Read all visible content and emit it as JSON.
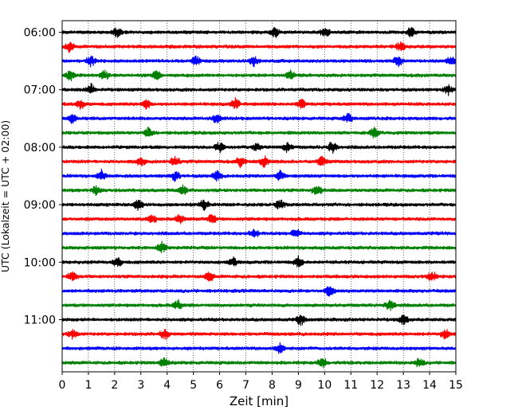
{
  "chart_data": {
    "type": "line",
    "title": "",
    "xlabel": "Zeit  [min]",
    "ylabel": "UTC (Lokalzeit = UTC + 02:00)",
    "xlim": [
      0,
      15
    ],
    "x_ticks": [
      "0",
      "1",
      "2",
      "3",
      "4",
      "5",
      "6",
      "7",
      "8",
      "9",
      "10",
      "11",
      "12",
      "13",
      "14",
      "15"
    ],
    "y_ticks": [
      "06:00",
      "07:00",
      "08:00",
      "09:00",
      "10:00",
      "11:00"
    ],
    "grid": "vertical-dotted",
    "legend": "none",
    "trace_interval_minutes": 15,
    "first_trace_time": "06:00",
    "colors": [
      "#000000",
      "#ff0000",
      "#0000ff",
      "#008000"
    ],
    "series": [
      {
        "time": "06:00",
        "color": "#000000",
        "events_min": [
          2.1,
          8.1,
          10.0,
          13.3
        ]
      },
      {
        "time": "06:15",
        "color": "#ff0000",
        "events_min": [
          0.3,
          12.9
        ]
      },
      {
        "time": "06:30",
        "color": "#0000ff",
        "events_min": [
          1.1,
          5.1,
          7.3,
          12.8,
          14.8
        ]
      },
      {
        "time": "06:45",
        "color": "#008000",
        "events_min": [
          0.3,
          1.6,
          3.6,
          8.7
        ]
      },
      {
        "time": "07:00",
        "color": "#000000",
        "events_min": [
          1.1,
          14.7
        ]
      },
      {
        "time": "07:15",
        "color": "#ff0000",
        "events_min": [
          0.7,
          3.2,
          6.6,
          9.1
        ]
      },
      {
        "time": "07:30",
        "color": "#0000ff",
        "events_min": [
          0.4,
          5.9,
          10.9
        ]
      },
      {
        "time": "07:45",
        "color": "#008000",
        "events_min": [
          3.3,
          11.9
        ]
      },
      {
        "time": "08:00",
        "color": "#000000",
        "events_min": [
          6.0,
          7.4,
          8.6,
          10.3
        ]
      },
      {
        "time": "08:15",
        "color": "#ff0000",
        "events_min": [
          3.0,
          4.3,
          6.8,
          7.7,
          9.9
        ]
      },
      {
        "time": "08:30",
        "color": "#0000ff",
        "events_min": [
          1.5,
          4.3,
          5.9,
          8.3
        ]
      },
      {
        "time": "08:45",
        "color": "#008000",
        "events_min": [
          1.3,
          4.6,
          9.7
        ]
      },
      {
        "time": "09:00",
        "color": "#000000",
        "events_min": [
          2.9,
          5.4,
          8.3
        ]
      },
      {
        "time": "09:15",
        "color": "#ff0000",
        "events_min": [
          3.4,
          4.5,
          5.7
        ]
      },
      {
        "time": "09:30",
        "color": "#0000ff",
        "events_min": [
          7.3,
          8.9
        ]
      },
      {
        "time": "09:45",
        "color": "#008000",
        "events_min": [
          3.8
        ]
      },
      {
        "time": "10:00",
        "color": "#000000",
        "events_min": [
          2.1,
          6.5,
          9.0
        ]
      },
      {
        "time": "10:15",
        "color": "#ff0000",
        "events_min": [
          0.4,
          5.6,
          14.1
        ]
      },
      {
        "time": "10:30",
        "color": "#0000ff",
        "events_min": [
          10.2
        ]
      },
      {
        "time": "10:45",
        "color": "#008000",
        "events_min": [
          4.4,
          12.5
        ]
      },
      {
        "time": "11:00",
        "color": "#000000",
        "events_min": [
          9.1,
          13.0
        ]
      },
      {
        "time": "11:15",
        "color": "#ff0000",
        "events_min": [
          0.4,
          3.9,
          14.6
        ]
      },
      {
        "time": "11:30",
        "color": "#0000ff",
        "events_min": [
          8.3
        ]
      },
      {
        "time": "11:45",
        "color": "#008000",
        "events_min": [
          3.9,
          9.9,
          13.6
        ]
      }
    ]
  }
}
